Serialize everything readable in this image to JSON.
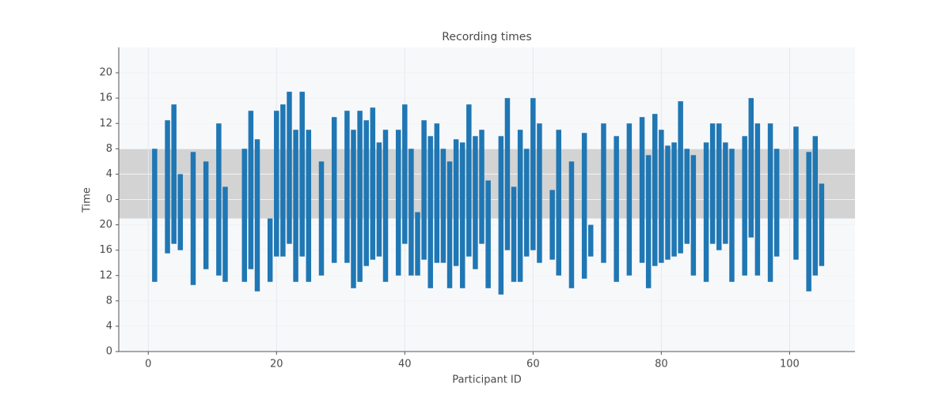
{
  "chart_data": {
    "type": "floating_bar",
    "title": "Recording times",
    "x_label": "Participant ID",
    "y_label": "Time",
    "color": "#1f77b4",
    "band": [
      21,
      32
    ],
    "band_color": "#d3d3d3",
    "grid": true,
    "xlim": [
      -4.6,
      110.2
    ],
    "xticks": [
      0,
      20,
      40,
      60,
      80,
      100
    ],
    "ylim": [
      0,
      48
    ],
    "yticks": [
      0,
      4,
      8,
      12,
      16,
      20,
      {
        "value": 24,
        "label": "0"
      },
      {
        "value": 28,
        "label": "4"
      },
      {
        "value": 32,
        "label": "8"
      },
      {
        "value": 36,
        "label": "12"
      },
      {
        "value": 40,
        "label": "16"
      },
      {
        "value": 44,
        "label": "20"
      }
    ],
    "x": [
      1,
      3,
      4,
      5,
      7,
      9,
      11,
      12,
      15,
      16,
      17,
      19,
      20,
      21,
      22,
      23,
      24,
      25,
      27,
      29,
      31,
      32,
      33,
      34,
      35,
      36,
      37,
      39,
      40,
      41,
      42,
      43,
      44,
      45,
      46,
      47,
      48,
      49,
      50,
      51,
      52,
      53,
      55,
      56,
      57,
      58,
      59,
      60,
      61,
      63,
      64,
      66,
      68,
      69,
      71,
      73,
      75,
      77,
      78,
      79,
      80,
      81,
      82,
      83,
      84,
      85,
      87,
      88,
      89,
      90,
      91,
      93,
      94,
      95,
      97,
      98,
      101,
      103,
      104,
      105
    ],
    "y_start": [
      11,
      15.5,
      17,
      16,
      10.5,
      13,
      12,
      11,
      11,
      13,
      9.5,
      11,
      15,
      15,
      17,
      11,
      15,
      11,
      12,
      14,
      14,
      10,
      11,
      13.5,
      14.5,
      15,
      11,
      12,
      17,
      12,
      12,
      14.5,
      10,
      14,
      14,
      10,
      13.5,
      10,
      15,
      13,
      17,
      10,
      9,
      16,
      11,
      11,
      15,
      16,
      14,
      14.5,
      12,
      10,
      11.5,
      15,
      14,
      11,
      12,
      14,
      10,
      13.5,
      14,
      14.5,
      15,
      15.5,
      17,
      12,
      11,
      17,
      16,
      17,
      11,
      12,
      18,
      12,
      11,
      15,
      14.5,
      9.5,
      12,
      13.5
    ],
    "y_end": [
      32,
      36.5,
      39,
      28,
      31.5,
      30,
      36,
      26,
      32,
      38,
      33.5,
      21,
      38,
      39,
      41,
      35,
      41,
      35,
      30,
      37,
      38,
      35,
      38,
      36.5,
      38.5,
      33,
      35,
      35,
      39,
      32,
      22,
      36.5,
      34,
      36,
      32,
      30,
      33.5,
      33,
      39,
      34,
      35,
      27,
      34,
      40,
      26,
      35,
      32,
      40,
      36,
      25.5,
      35,
      30,
      34.5,
      20,
      36,
      34,
      36,
      37,
      31,
      37.5,
      35,
      32.5,
      33,
      39.5,
      32,
      31,
      33,
      36,
      36,
      33,
      32,
      34,
      40,
      36,
      36,
      32,
      35.5,
      31.5,
      34,
      26.5
    ]
  }
}
